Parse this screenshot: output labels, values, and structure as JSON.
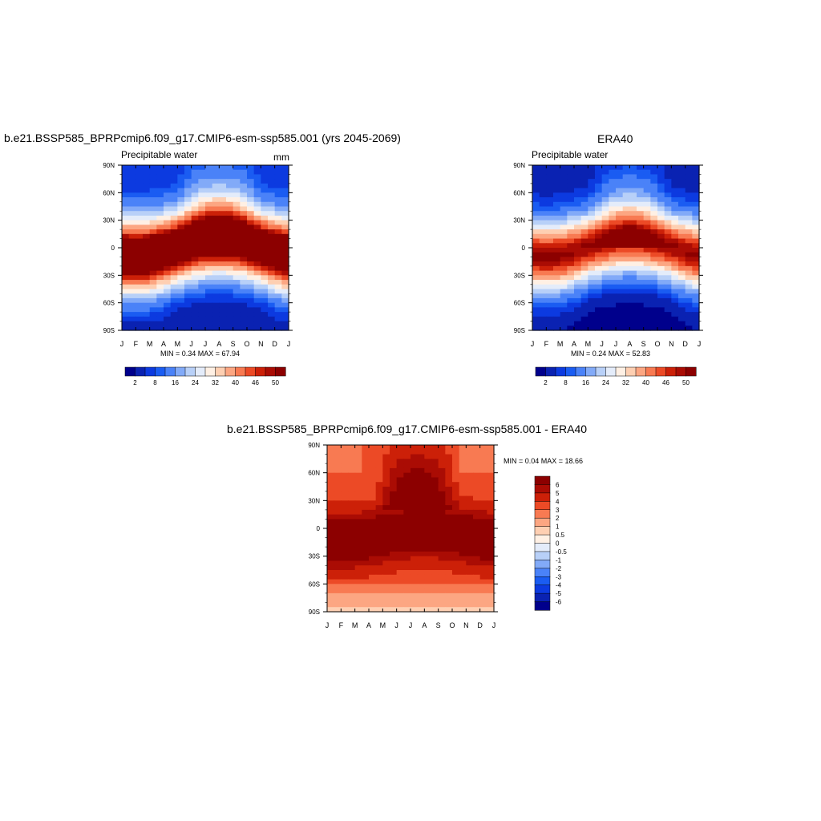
{
  "colors": {
    "seq": [
      "#00008c",
      "#0a22b2",
      "#0c3ae0",
      "#1a5cf2",
      "#4a82f8",
      "#82aaf8",
      "#b8d0f8",
      "#e4ecfa",
      "#fff0e4",
      "#fecfb2",
      "#fca682",
      "#f87a52",
      "#ec4a26",
      "#cc2008",
      "#aa0c04",
      "#8c0000"
    ],
    "diff": [
      "#00008c",
      "#0a22b2",
      "#0c3ae0",
      "#1a5cf2",
      "#4a82f8",
      "#82aaf8",
      "#b8d0f8",
      "#e4ecfa",
      "#fff0e4",
      "#fecfb2",
      "#fca682",
      "#f87a52",
      "#ec4a26",
      "#cc2008",
      "#aa0c04",
      "#8c0000"
    ]
  },
  "top_left": {
    "title": "b.e21.BSSP585_BPRPcmip6.f09_g17.CMIP6-esm-ssp585.001 (yrs 2045-2069)",
    "field": "Precipitable water",
    "units": "mm",
    "minmax": "MIN =   0.34 MAX =  67.94"
  },
  "top_right": {
    "title": "ERA40",
    "field": "Precipitable water",
    "minmax": "MIN =   0.24 MAX =  52.83"
  },
  "bottom": {
    "title": "b.e21.BSSP585_BPRPcmip6.f09_g17.CMIP6-esm-ssp585.001 - ERA40",
    "minmax": "MIN =   0.04 MAX =  18.66"
  },
  "chart_data": [
    {
      "type": "heatmap",
      "title": "b.e21.BSSP585_BPRPcmip6.f09_g17.CMIP6-esm-ssp585.001 (yrs 2045-2069)",
      "x_ticks": [
        "J",
        "F",
        "M",
        "A",
        "M",
        "J",
        "J",
        "A",
        "S",
        "O",
        "N",
        "D",
        "J"
      ],
      "y_ticks": [
        "90N",
        "60N",
        "30N",
        "0",
        "30S",
        "60S",
        "90S"
      ],
      "colorbar_labels": [
        "2",
        "8",
        "16",
        "24",
        "32",
        "40",
        "46",
        "50"
      ],
      "colorbar_levels": [
        2,
        4,
        6,
        8,
        12,
        16,
        20,
        24,
        28,
        32,
        36,
        40,
        43,
        46,
        48,
        50
      ],
      "min": 0.34,
      "max": 67.94,
      "model": {
        "kind": "pw",
        "eqAmp": 58,
        "base": 1.5,
        "polarN": 3,
        "polarS": 0.5,
        "width": 26,
        "shiftAmp": 9,
        "shiftPhase": 7.0,
        "nhSummer": 10
      }
    },
    {
      "type": "heatmap",
      "title": "ERA40",
      "x_ticks": [
        "J",
        "F",
        "M",
        "A",
        "M",
        "J",
        "J",
        "A",
        "S",
        "O",
        "N",
        "D",
        "J"
      ],
      "y_ticks": [
        "90N",
        "60N",
        "30N",
        "0",
        "30S",
        "60S",
        "90S"
      ],
      "colorbar_labels": [
        "2",
        "8",
        "16",
        "24",
        "32",
        "40",
        "46",
        "50"
      ],
      "colorbar_levels": [
        2,
        4,
        6,
        8,
        12,
        16,
        20,
        24,
        28,
        32,
        36,
        40,
        43,
        46,
        48,
        50
      ],
      "min": 0.24,
      "max": 52.83,
      "model": {
        "kind": "pw",
        "eqAmp": 46,
        "base": 1.0,
        "polarN": 2,
        "polarS": 0.4,
        "width": 24,
        "shiftAmp": 9,
        "shiftPhase": 7.0,
        "nhSummer": 8
      }
    },
    {
      "type": "heatmap",
      "title": "b.e21.BSSP585_BPRPcmip6.f09_g17.CMIP6-esm-ssp585.001 - ERA40",
      "x_ticks": [
        "J",
        "F",
        "M",
        "A",
        "M",
        "J",
        "J",
        "A",
        "S",
        "O",
        "N",
        "D",
        "J"
      ],
      "y_ticks": [
        "90N",
        "60N",
        "30N",
        "0",
        "30S",
        "60S",
        "90S"
      ],
      "colorbar_labels": [
        "6",
        "5",
        "4",
        "3",
        "2",
        "1",
        "0.5",
        "0",
        "-0.5",
        "-1",
        "-2",
        "-3",
        "-4",
        "-5",
        "-6"
      ],
      "colorbar_levels": [
        -6,
        -5,
        -4,
        -3,
        -2,
        -1,
        -0.5,
        0,
        0.5,
        1,
        2,
        3,
        4,
        5,
        6
      ],
      "min": 0.04,
      "max": 18.66,
      "model": {
        "kind": "diff"
      }
    }
  ]
}
